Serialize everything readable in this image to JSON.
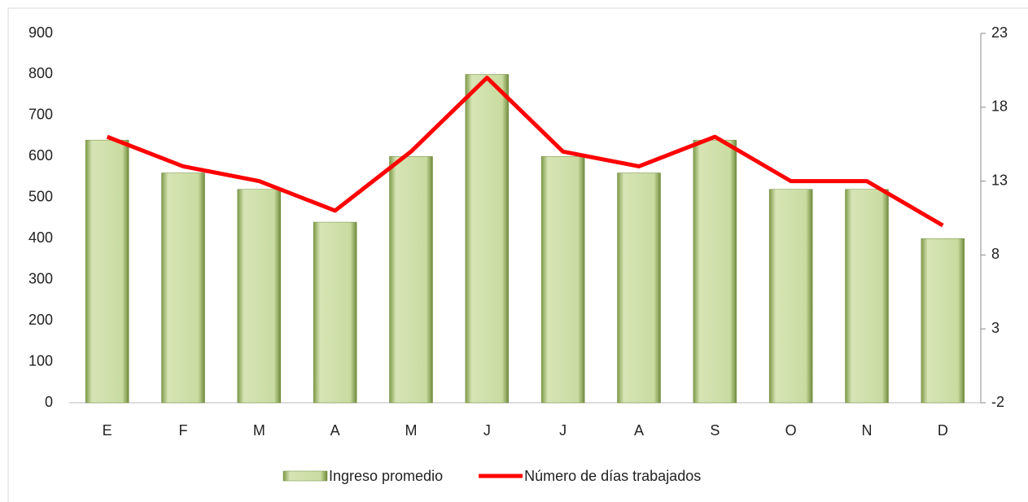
{
  "chart_data": {
    "type": "bar",
    "categories": [
      "E",
      "F",
      "M",
      "A",
      "M",
      "J",
      "J",
      "A",
      "S",
      "O",
      "N",
      "D"
    ],
    "series": [
      {
        "name": "Ingreso promedio",
        "type": "bar",
        "color": "#c4d79b",
        "values": [
          640,
          560,
          520,
          440,
          600,
          800,
          600,
          560,
          640,
          520,
          520,
          400
        ]
      },
      {
        "name": "Número de días trabajados",
        "type": "line",
        "axis": "y2",
        "color": "#ff0000",
        "values": [
          16,
          14,
          13,
          11,
          15,
          20,
          15,
          14,
          16,
          13,
          13,
          10
        ]
      }
    ],
    "ylim": [
      0,
      900
    ],
    "yticks": [
      0,
      100,
      200,
      300,
      400,
      500,
      600,
      700,
      800,
      900
    ],
    "y2lim": [
      -2,
      23
    ],
    "y2ticks": [
      -2,
      3,
      8,
      13,
      18,
      23
    ],
    "legend": "bottom"
  }
}
